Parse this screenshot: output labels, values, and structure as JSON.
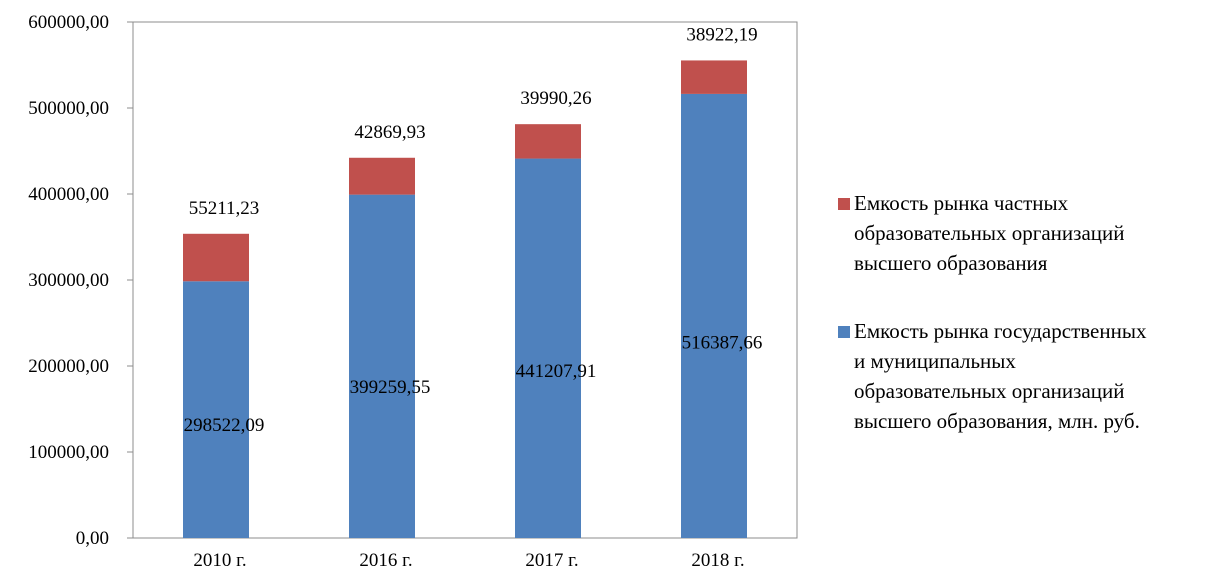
{
  "chart_data": {
    "type": "bar",
    "stacked": true,
    "categories": [
      "2010 г.",
      "2016 г.",
      "2017 г.",
      "2018 г."
    ],
    "series": [
      {
        "name": "Емкость рынка государственных и муниципальных образовательных организаций высшего образования, млн. руб.",
        "legend_lines": [
          "Емкость рынка государственных",
          "и муниципальных",
          "образовательных организаций",
          "высшего образования, млн. руб."
        ],
        "color": "#4f81bd",
        "values": [
          298522.09,
          399259.55,
          441207.91,
          516387.66
        ],
        "labels": [
          "298522,09",
          "399259,55",
          "441207,91",
          "516387,66"
        ]
      },
      {
        "name": "Емкость рынка частных образовательных организаций высшего образования",
        "legend_lines": [
          "Емкость рынка частных",
          "образовательных организаций",
          "высшего образования"
        ],
        "color": "#c0504d",
        "values": [
          55211.23,
          42869.93,
          39990.26,
          38922.19
        ],
        "labels": [
          "55211,23",
          "42869,93",
          "39990,26",
          "38922,19"
        ]
      }
    ],
    "ylim": [
      0,
      600000
    ],
    "yticks": [
      0,
      100000,
      200000,
      300000,
      400000,
      500000,
      600000
    ],
    "ytick_labels": [
      "0,00",
      "100000,00",
      "200000,00",
      "300000,00",
      "400000,00",
      "500000,00",
      "600000,00"
    ],
    "title": "",
    "xlabel": "",
    "ylabel": "",
    "grid": false,
    "legend_position": "right"
  }
}
